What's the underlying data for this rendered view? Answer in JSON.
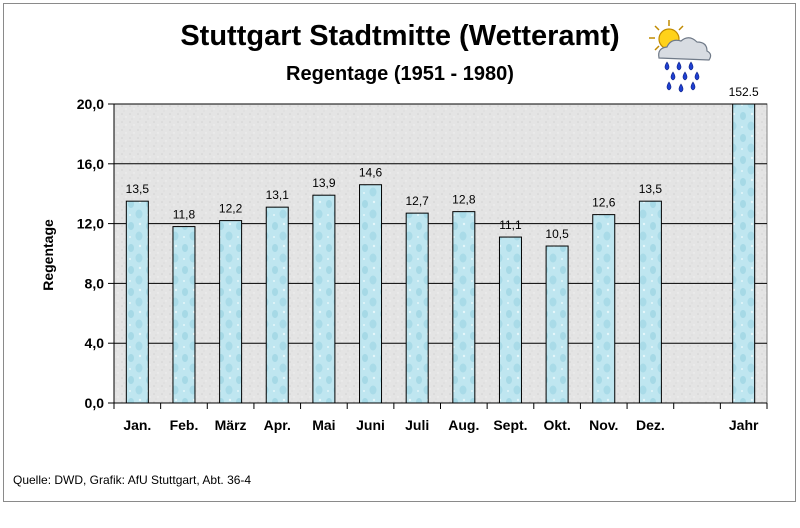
{
  "chart_data": {
    "type": "bar",
    "title": "Stuttgart Stadtmitte (Wetteramt)",
    "subtitle": "Regentage (1951 - 1980)",
    "ylabel": "Regentage",
    "xlabel": "",
    "categories": [
      "Jan.",
      "Feb.",
      "März",
      "Apr.",
      "Mai",
      "Juni",
      "Juli",
      "Aug.",
      "Sept.",
      "Okt.",
      "Nov.",
      "Dez.",
      "",
      "Jahr"
    ],
    "values": [
      13.5,
      11.8,
      12.2,
      13.1,
      13.9,
      14.6,
      12.7,
      12.8,
      11.1,
      10.5,
      12.6,
      13.5,
      null,
      152.5
    ],
    "value_labels": [
      "13,5",
      "11,8",
      "12,2",
      "13,1",
      "13,9",
      "14,6",
      "12,7",
      "12,8",
      "11,1",
      "10,5",
      "12,6",
      "13,5",
      "",
      "152.5"
    ],
    "ylim": [
      0,
      20
    ],
    "yticks": [
      0,
      4,
      8,
      12,
      16,
      20
    ],
    "ytick_labels": [
      "0,0",
      "4,0",
      "8,0",
      "12,0",
      "16,0",
      "20,0"
    ],
    "grid": true,
    "colors": {
      "bar_fill": "#bfe6f0",
      "bar_stroke": "#000000",
      "plot_background": "#e2e2e2",
      "gridline": "#000000"
    }
  },
  "footer": {
    "source": "Quelle: DWD, Grafik: AfU Stuttgart, Abt. 36-4"
  },
  "icons": {
    "weather": "sun-cloud-rain-icon"
  }
}
